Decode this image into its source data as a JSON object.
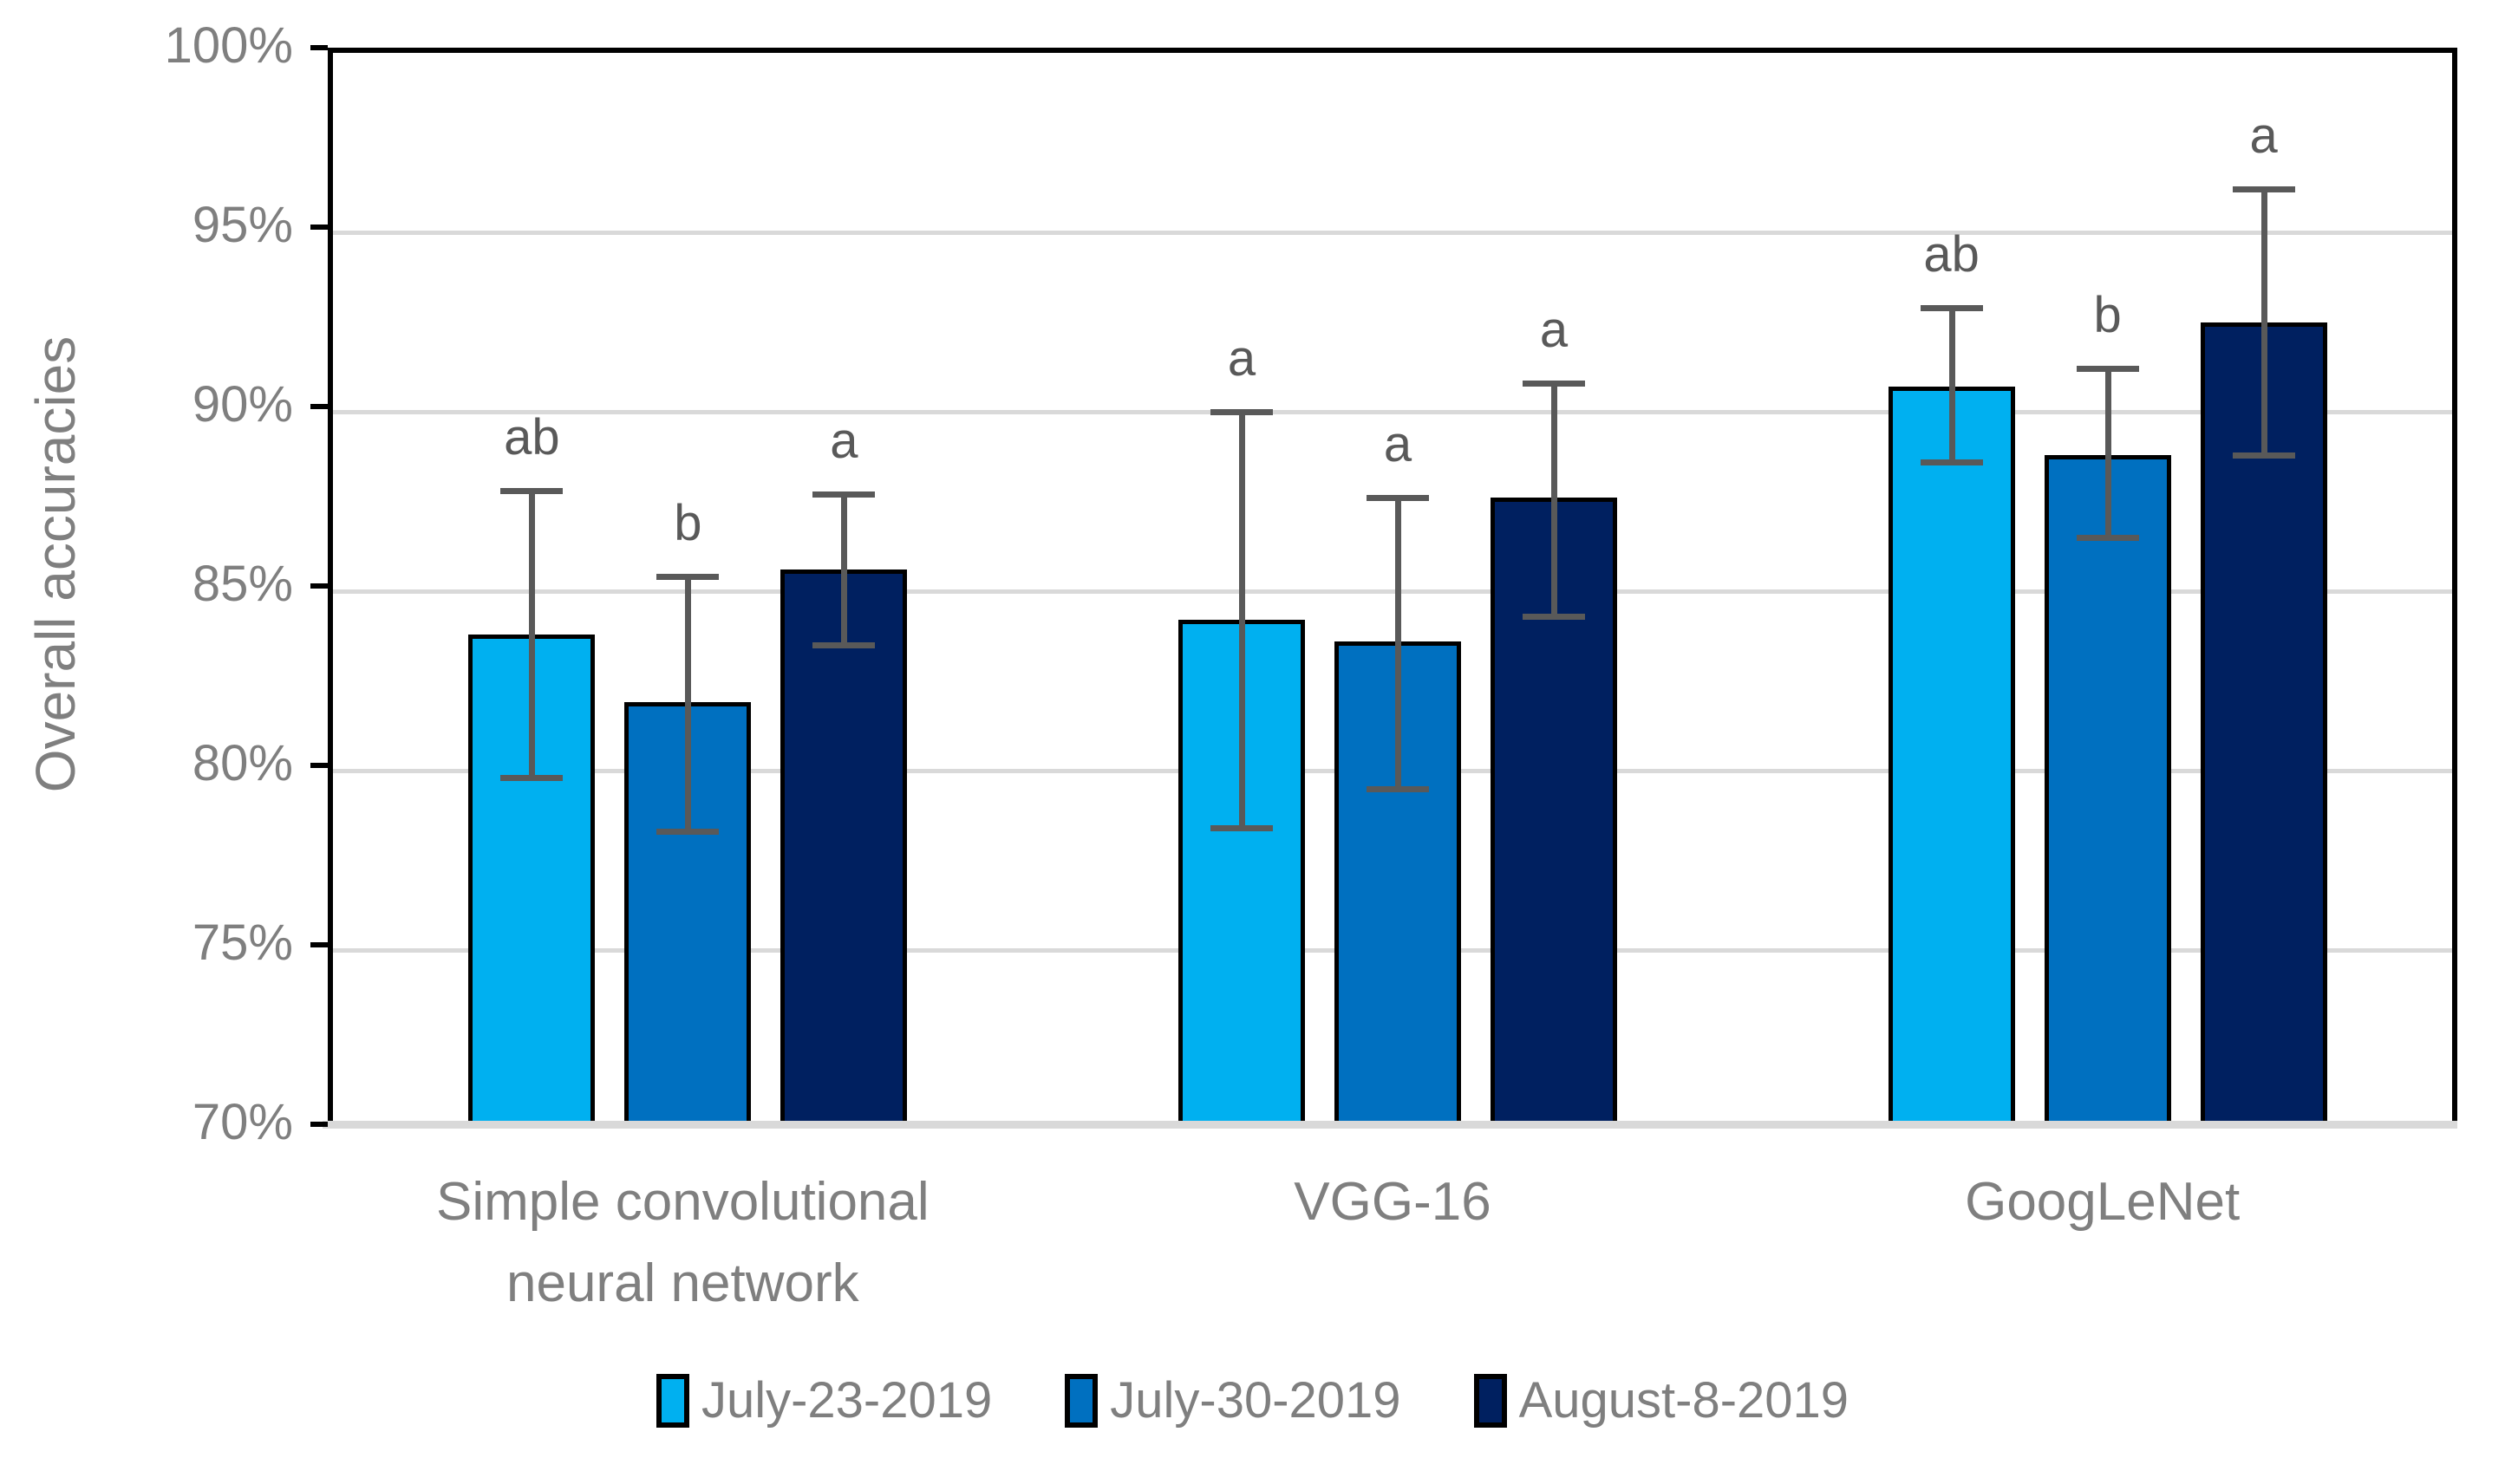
{
  "chart_data": {
    "type": "bar",
    "title": "",
    "ylabel": "Overall accuracies",
    "xlabel": "",
    "ylim": [
      70,
      100
    ],
    "ytick_step": 5,
    "ytick_labels": [
      "100%",
      "95%",
      "90%",
      "85%",
      "80%",
      "75%",
      "70%"
    ],
    "grid": true,
    "legend_position": "bottom",
    "categories": [
      "Simple convolutional neural network",
      "VGG-16",
      "GoogLeNet"
    ],
    "category_lines": [
      [
        "Simple convolutional",
        "neural network"
      ],
      [
        "VGG-16"
      ],
      [
        "GoogLeNet"
      ]
    ],
    "series": [
      {
        "name": "July-23-2019",
        "color": "#00B0F0",
        "values": [
          83.8,
          84.2,
          90.7
        ],
        "err_low": [
          79.8,
          78.4,
          88.6
        ],
        "err_high": [
          87.8,
          90.0,
          92.9
        ],
        "sig_letters": [
          "ab",
          "a",
          "ab"
        ]
      },
      {
        "name": "July-30-2019",
        "color": "#0070C0",
        "values": [
          81.9,
          83.6,
          88.8
        ],
        "err_low": [
          78.3,
          79.5,
          86.5
        ],
        "err_high": [
          85.4,
          87.6,
          91.2
        ],
        "sig_letters": [
          "b",
          "a",
          "b"
        ]
      },
      {
        "name": "August-8-2019",
        "color": "#002060",
        "values": [
          85.6,
          87.6,
          92.5
        ],
        "err_low": [
          83.5,
          84.3,
          88.8
        ],
        "err_high": [
          87.7,
          90.8,
          96.2
        ],
        "sig_letters": [
          "a",
          "a",
          "a"
        ]
      }
    ],
    "styles": {
      "error_bar_color": "#595959",
      "sig_letter_color": "#595959",
      "gridline_color": "#D9D9D9",
      "axis_line_color": "#000000",
      "bottom_axis_color": "#D9D9D9",
      "tick_label_color": "#7F7F7F",
      "bar_border_color": "#000000",
      "background": "#FFFFFF"
    }
  }
}
